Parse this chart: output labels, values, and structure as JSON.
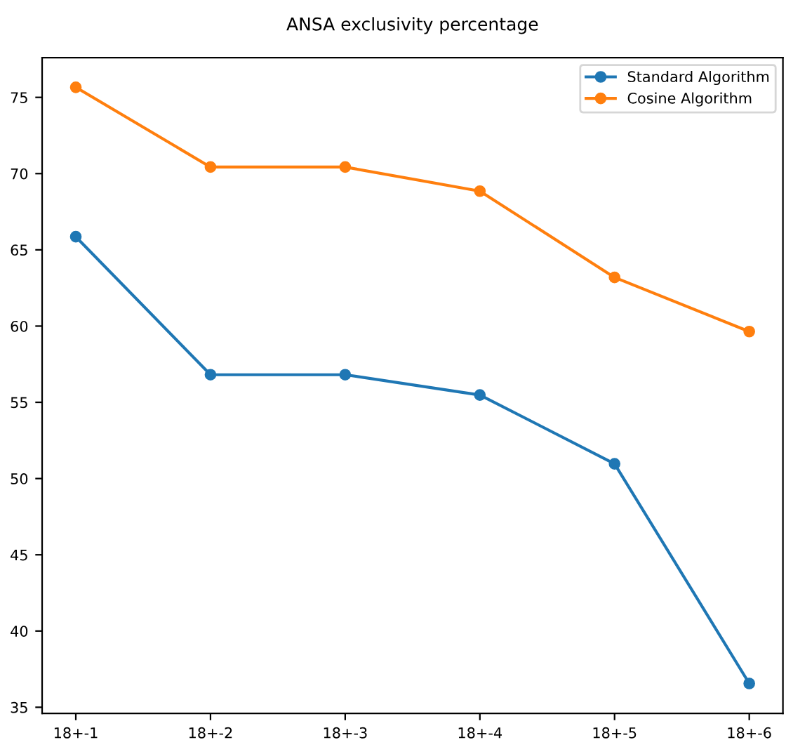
{
  "chart_data": {
    "type": "line",
    "title": "ANSA exclusivity percentage",
    "categories": [
      "18+-1",
      "18+-2",
      "18+-3",
      "18+-4",
      "18+-5",
      "18+-6"
    ],
    "series": [
      {
        "name": "Standard Algorithm",
        "color": "#1f77b4",
        "values": [
          65.86,
          56.81,
          56.81,
          55.48,
          50.97,
          36.56
        ]
      },
      {
        "name": "Cosine Algorithm",
        "color": "#ff7f0e",
        "values": [
          75.66,
          70.43,
          70.43,
          68.85,
          63.19,
          59.64
        ]
      }
    ],
    "ylim": [
      34.6,
      77.6
    ],
    "yticks": [
      35,
      40,
      45,
      50,
      55,
      60,
      65,
      70,
      75
    ],
    "legend": "top right",
    "marker": "circle",
    "line_style": "solid",
    "grid": false
  }
}
